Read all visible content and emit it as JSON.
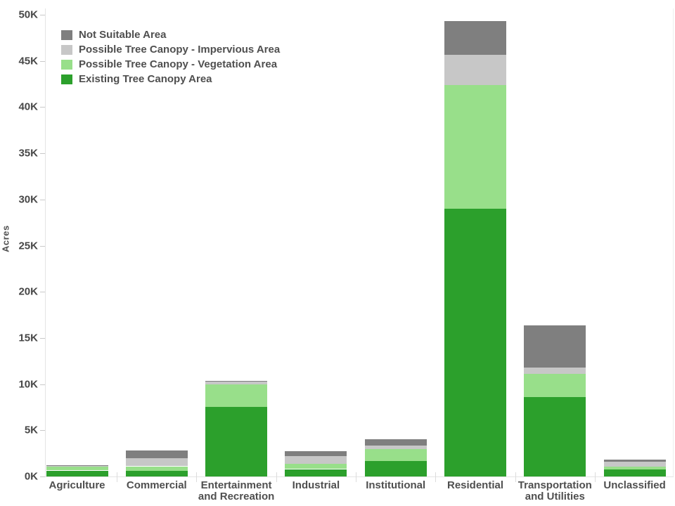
{
  "chart_data": {
    "type": "bar",
    "stacked": true,
    "title": "",
    "xlabel": "",
    "ylabel": "Acres",
    "ylim": [
      0,
      50000
    ],
    "ytick_step": 5000,
    "ytick_labels": [
      "0K",
      "5K",
      "10K",
      "15K",
      "20K",
      "25K",
      "30K",
      "35K",
      "40K",
      "45K",
      "50K"
    ],
    "grid": false,
    "legend_position": "top-left",
    "legend_order_top_to_bottom": [
      "Not Suitable Area",
      "Possible Tree Canopy - Impervious Area",
      "Possible Tree Canopy - Vegetation Area",
      "Existing Tree Canopy Area"
    ],
    "categories": [
      "Agriculture",
      "Commercial",
      "Entertainment and Recreation",
      "Industrial",
      "Institutional",
      "Residential",
      "Transportation and Utilities",
      "Unclassified"
    ],
    "series": [
      {
        "name": "Existing Tree Canopy Area",
        "color": "#2CA02C",
        "values": [
          650,
          600,
          7550,
          800,
          1700,
          29000,
          8600,
          750
        ]
      },
      {
        "name": "Possible Tree Canopy - Vegetation Area",
        "color": "#98DF8A",
        "values": [
          400,
          500,
          2400,
          550,
          1250,
          13400,
          2500,
          350
        ]
      },
      {
        "name": "Possible Tree Canopy - Impervious Area",
        "color": "#C7C7C7",
        "values": [
          100,
          900,
          300,
          850,
          400,
          3300,
          700,
          500
        ]
      },
      {
        "name": "Not Suitable Area",
        "color": "#7F7F7F",
        "values": [
          50,
          850,
          100,
          550,
          700,
          3650,
          4600,
          200
        ]
      }
    ],
    "category_totals_acres": [
      1200,
      2850,
      10350,
      2750,
      4050,
      49350,
      16400,
      1800
    ]
  },
  "colors": {
    "background": "#ffffff",
    "axis_line": "#e4e4e4",
    "tick_mark": "#c9c9c9",
    "text": "#4f4f4f"
  }
}
